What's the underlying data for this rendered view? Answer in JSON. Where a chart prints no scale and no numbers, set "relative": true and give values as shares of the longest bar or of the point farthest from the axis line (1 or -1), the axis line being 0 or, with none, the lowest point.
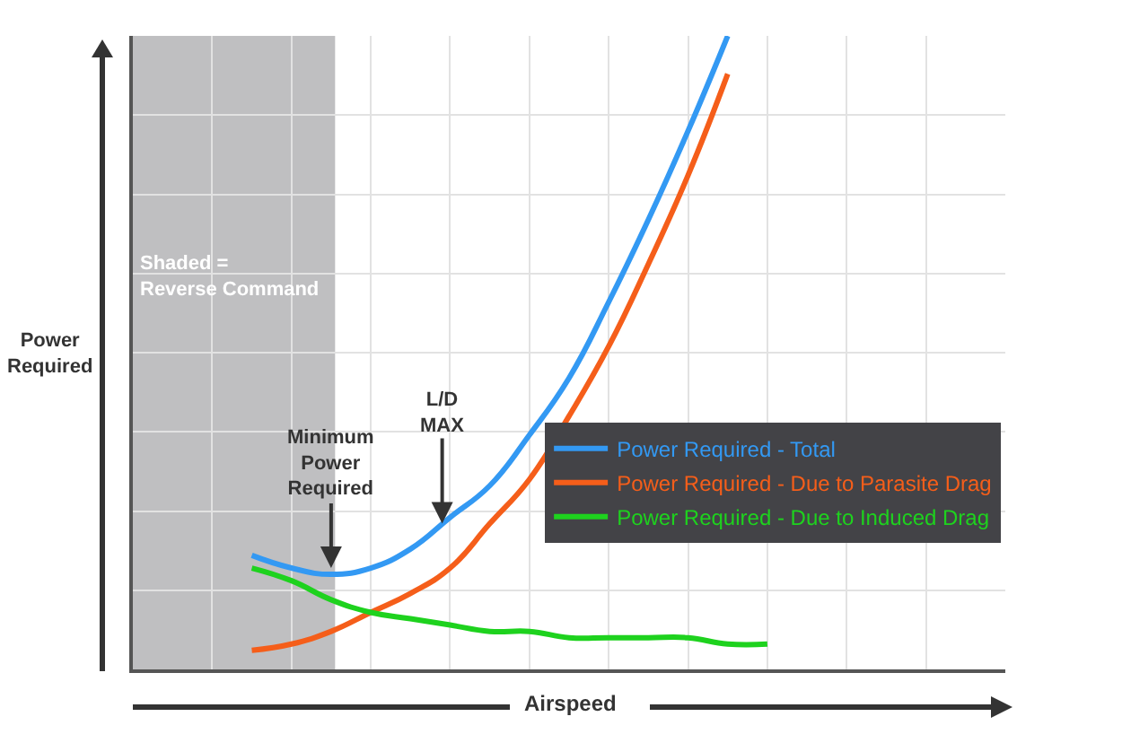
{
  "chart_data": {
    "type": "line",
    "relative": true,
    "categories": [
      null,
      null,
      null,
      null,
      null,
      null,
      null,
      null,
      null,
      null,
      null,
      null,
      null,
      null,
      null,
      null,
      null,
      null,
      null,
      null,
      null,
      null,
      null
    ],
    "series": [
      {
        "name": "Power Required - Total",
        "color": "#3399f3",
        "values": [
          null,
          null,
          null,
          0.18,
          0.16,
          0.15,
          0.16,
          0.19,
          0.24,
          0.29,
          0.37,
          0.46,
          0.58,
          0.71,
          0.85,
          1.0,
          null,
          null,
          null,
          null,
          null,
          null,
          null
        ]
      },
      {
        "name": "Power Required - Due to Parasite Drag",
        "color": "#f55e1a",
        "values": [
          null,
          null,
          null,
          0.03,
          0.04,
          0.06,
          0.09,
          0.12,
          0.16,
          0.23,
          0.3,
          0.4,
          0.51,
          0.64,
          0.78,
          0.94,
          null,
          null,
          null,
          null,
          null,
          null,
          null
        ]
      },
      {
        "name": "Power Required - Due to Induced Drag",
        "color": "#1ed21e",
        "values": [
          null,
          null,
          null,
          0.16,
          0.14,
          0.11,
          0.09,
          0.08,
          0.07,
          0.06,
          0.06,
          0.05,
          0.05,
          0.05,
          0.05,
          0.04,
          0.04,
          null,
          null,
          null,
          null,
          null,
          null
        ]
      }
    ],
    "annotations": [
      "Shaded = Reverse Command",
      "Minimum Power Required",
      "L/D MAX"
    ],
    "xlabel": "Airspeed",
    "ylabel": "Power Required",
    "grid": true,
    "legend": "bottom right",
    "marker": "none",
    "line_style": "solid"
  }
}
